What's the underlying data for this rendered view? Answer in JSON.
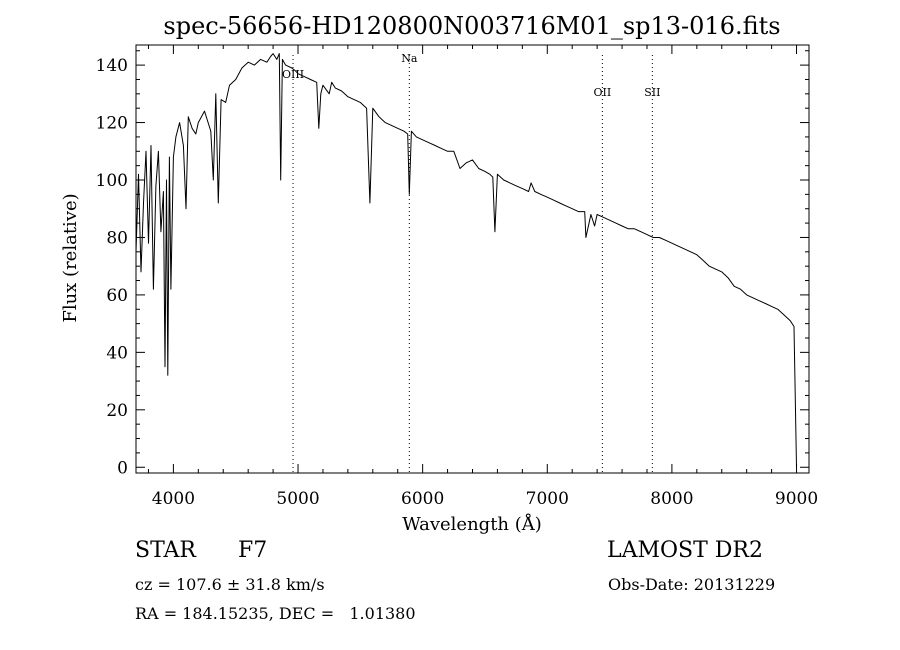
{
  "chart_data": {
    "type": "line",
    "title": "spec-56656-HD120800N003716M01_sp13-016.fits",
    "xlabel": "Wavelength (Å)",
    "ylabel": "Flux (relative)",
    "xlim": [
      3700,
      9100
    ],
    "ylim": [
      -2,
      147
    ],
    "xticks": [
      4000,
      5000,
      6000,
      7000,
      8000,
      9000
    ],
    "yticks": [
      0,
      20,
      40,
      60,
      80,
      100,
      120,
      140
    ],
    "line_color": "#000000",
    "series": [
      {
        "x": [
          3700,
          3720,
          3740,
          3760,
          3780,
          3800,
          3820,
          3840,
          3860,
          3880,
          3900,
          3920,
          3933,
          3945,
          3955,
          3968,
          3980,
          4000,
          4020,
          4050,
          4080,
          4101,
          4120,
          4150,
          4180,
          4200,
          4250,
          4300,
          4320,
          4340,
          4360,
          4383,
          4420,
          4450,
          4500,
          4550,
          4600,
          4650,
          4700,
          4750,
          4780,
          4800,
          4830,
          4850,
          4861,
          4875,
          4900,
          4950,
          4980,
          5000,
          5050,
          5100,
          5150,
          5167,
          5183,
          5200,
          5250,
          5270,
          5300,
          5350,
          5400,
          5450,
          5500,
          5550,
          5577,
          5600,
          5650,
          5700,
          5750,
          5800,
          5850,
          5880,
          5893,
          5910,
          5950,
          6000,
          6050,
          6100,
          6150,
          6200,
          6250,
          6300,
          6350,
          6400,
          6450,
          6500,
          6540,
          6563,
          6580,
          6600,
          6650,
          6700,
          6750,
          6800,
          6850,
          6870,
          6900,
          6950,
          7000,
          7050,
          7100,
          7150,
          7200,
          7250,
          7300,
          7310,
          7350,
          7380,
          7400,
          7450,
          7500,
          7550,
          7600,
          7650,
          7700,
          7750,
          7800,
          7850,
          7900,
          7950,
          8000,
          8050,
          8100,
          8150,
          8200,
          8250,
          8300,
          8350,
          8400,
          8450,
          8500,
          8550,
          8600,
          8650,
          8700,
          8750,
          8800,
          8850,
          8900,
          8950,
          8980,
          9000
        ],
        "values": [
          75,
          102,
          68,
          92,
          110,
          78,
          112,
          62,
          98,
          110,
          82,
          96,
          35,
          100,
          32,
          108,
          62,
          108,
          115,
          120,
          112,
          90,
          122,
          118,
          116,
          120,
          124,
          117,
          100,
          130,
          92,
          128,
          127,
          133,
          135,
          139,
          141,
          140,
          142,
          141,
          143,
          144,
          142,
          144,
          100,
          142,
          140,
          139,
          138,
          137,
          136,
          135,
          134,
          118,
          130,
          133,
          130,
          134,
          132,
          131,
          129,
          128,
          127,
          125,
          92,
          125,
          122,
          120,
          119,
          118,
          117,
          116,
          95,
          117,
          115,
          114,
          113,
          112,
          111,
          110,
          110,
          104,
          106,
          107,
          104,
          103,
          102,
          101,
          82,
          102,
          100,
          99,
          98,
          97,
          96,
          99,
          96,
          95,
          94,
          93,
          92,
          91,
          90,
          89,
          89,
          80,
          88,
          84,
          88,
          87,
          86,
          85,
          84,
          83,
          83,
          82,
          81,
          80,
          80,
          79,
          78,
          77,
          76,
          75,
          74,
          72,
          70,
          69,
          68,
          66,
          63,
          62,
          60,
          59,
          58,
          57,
          56,
          55,
          53,
          51,
          49,
          0
        ]
      }
    ],
    "annotations": [
      {
        "label": "OIII",
        "x": 4960
      },
      {
        "label": "Na",
        "x": 5893
      },
      {
        "label": "OII",
        "x": 7442
      },
      {
        "label": "SII",
        "x": 7843
      }
    ]
  },
  "info": {
    "object_type": "STAR",
    "object_class": "F7",
    "cz": "cz = 107.6 ± 31.8 km/s",
    "radec": "RA = 184.15235, DEC =   1.01380",
    "survey": "LAMOST DR2",
    "obs_date": "Obs-Date: 20131229"
  }
}
